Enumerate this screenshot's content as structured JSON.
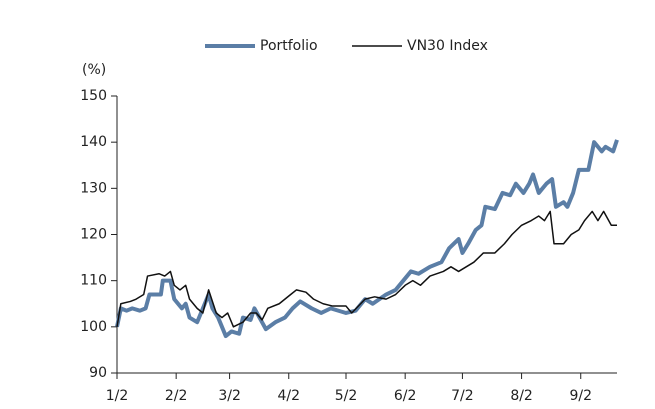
{
  "chart_data": {
    "type": "line",
    "y_axis_label": "(%)",
    "xlim": [
      0,
      262
    ],
    "xticks": [
      {
        "value": 0,
        "label": "1/2"
      },
      {
        "value": 31,
        "label": "2/2"
      },
      {
        "value": 59,
        "label": "3/2"
      },
      {
        "value": 90,
        "label": "4/2"
      },
      {
        "value": 120,
        "label": "5/2"
      },
      {
        "value": 151,
        "label": "6/2"
      },
      {
        "value": 181,
        "label": "7/2"
      },
      {
        "value": 212,
        "label": "8/2"
      },
      {
        "value": 243,
        "label": "9/2"
      }
    ],
    "ylim": [
      90,
      150
    ],
    "yticks": [
      90,
      100,
      110,
      120,
      130,
      140,
      150
    ],
    "legend": "top",
    "series": [
      {
        "name": "Portfolio",
        "color": "#5b7ea6",
        "width": 4,
        "x": [
          0,
          2,
          5,
          8,
          12,
          15,
          17,
          23,
          24,
          28,
          30,
          34,
          36,
          38,
          42,
          45,
          48,
          50,
          53,
          57,
          60,
          64,
          66,
          70,
          72,
          76,
          78,
          83,
          88,
          92,
          96,
          102,
          107,
          112,
          120,
          125,
          130,
          134,
          141,
          146,
          150,
          154,
          158,
          164,
          170,
          174,
          179,
          181,
          184,
          188,
          191,
          193,
          198,
          202,
          206,
          209,
          213,
          216,
          218,
          221,
          225,
          228,
          230,
          234,
          236,
          239,
          242,
          247,
          250,
          254,
          256,
          260,
          262
        ],
        "values": [
          100,
          104,
          103.5,
          104,
          103.5,
          104,
          107,
          107,
          110,
          110,
          106,
          104,
          105,
          102,
          101,
          104,
          107,
          104,
          102,
          98,
          99,
          98.5,
          102,
          101.5,
          104,
          101,
          99.5,
          101,
          102,
          104,
          105.5,
          104,
          103,
          104,
          103,
          103.5,
          106,
          105,
          107,
          108,
          110,
          112,
          111.5,
          113,
          114,
          117,
          119,
          116,
          118,
          121,
          122,
          126,
          125.5,
          129,
          128.5,
          131,
          129,
          131,
          133,
          129,
          131,
          132,
          126,
          127,
          126,
          129,
          134,
          134,
          140,
          138,
          139,
          138,
          140.5
        ]
      },
      {
        "name": "VN30 Index",
        "color": "#111111",
        "width": 1.5,
        "x": [
          0,
          2,
          7,
          10,
          14,
          16,
          22,
          25,
          28,
          30,
          33,
          36,
          38,
          42,
          45,
          48,
          52,
          55,
          58,
          61,
          66,
          70,
          73,
          76,
          79,
          85,
          91,
          94,
          99,
          103,
          108,
          113,
          120,
          123,
          130,
          135,
          141,
          146,
          151,
          155,
          159,
          164,
          171,
          175,
          179,
          183,
          187,
          192,
          198,
          203,
          207,
          212,
          217,
          221,
          224,
          227,
          229,
          234,
          238,
          242,
          245,
          249,
          252,
          255,
          259,
          262
        ],
        "values": [
          100,
          105,
          105.5,
          106,
          107,
          111,
          111.5,
          111,
          112,
          109,
          108,
          109,
          106,
          104,
          103,
          108,
          103,
          102,
          103,
          100,
          101,
          103,
          103,
          101.5,
          104,
          105,
          107,
          108,
          107.5,
          106,
          105,
          104.5,
          104.5,
          103,
          106,
          106.5,
          106,
          107,
          109,
          110,
          109,
          111,
          112,
          113,
          112,
          113,
          114,
          116,
          116,
          118,
          120,
          122,
          123,
          124,
          123,
          125,
          118,
          118,
          120,
          121,
          123,
          125,
          123,
          125,
          122,
          122
        ]
      }
    ]
  }
}
